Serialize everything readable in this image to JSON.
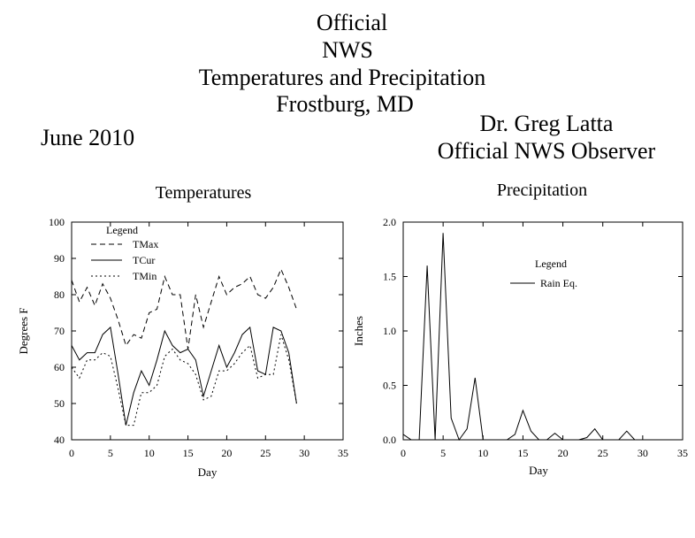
{
  "header": {
    "title_lines": [
      "Official",
      "NWS",
      "Temperatures and Precipitation",
      "Frostburg, MD"
    ],
    "month": "June 2010",
    "observer_lines": [
      "Dr. Greg Latta",
      "Official NWS Observer"
    ]
  },
  "chart_data": [
    {
      "type": "line",
      "title": "Temperatures",
      "xlabel": "Day",
      "ylabel": "Degrees F",
      "xlim": [
        0,
        35
      ],
      "ylim": [
        40,
        100
      ],
      "xticks": [
        0,
        5,
        10,
        15,
        20,
        25,
        30,
        35
      ],
      "yticks": [
        40,
        50,
        60,
        70,
        80,
        90,
        100
      ],
      "legend_title": "Legend",
      "legend_position": "top-left",
      "grid": false,
      "x": [
        0,
        1,
        2,
        3,
        4,
        5,
        6,
        7,
        8,
        9,
        10,
        11,
        12,
        13,
        14,
        15,
        16,
        17,
        18,
        19,
        20,
        21,
        22,
        23,
        24,
        25,
        26,
        27,
        28,
        29
      ],
      "series": [
        {
          "name": "TMax",
          "style": "dashed",
          "values": [
            84,
            78,
            82,
            77,
            83,
            79,
            73,
            66,
            69,
            68,
            75,
            76,
            85,
            80,
            80,
            65,
            80,
            71,
            78,
            85,
            80,
            82,
            83,
            85,
            80,
            79,
            82,
            87,
            82,
            76
          ]
        },
        {
          "name": "TCur",
          "style": "solid",
          "values": [
            66,
            62,
            64,
            64,
            69,
            71,
            58,
            44,
            53,
            59,
            55,
            62,
            70,
            66,
            64,
            65,
            62,
            52,
            59,
            66,
            60,
            64,
            69,
            71,
            59,
            58,
            71,
            70,
            64,
            50
          ]
        },
        {
          "name": "TMin",
          "style": "dotted",
          "values": [
            60,
            57,
            62,
            62,
            64,
            63,
            54,
            44,
            44,
            53,
            53,
            55,
            63,
            65,
            62,
            61,
            58,
            51,
            52,
            59,
            59,
            61,
            64,
            66,
            57,
            58,
            58,
            69,
            62,
            50
          ]
        }
      ]
    },
    {
      "type": "line",
      "title": "Precipitation",
      "xlabel": "Day",
      "ylabel": "Inches",
      "xlim": [
        0,
        35
      ],
      "ylim": [
        0,
        2
      ],
      "xticks": [
        0,
        5,
        10,
        15,
        20,
        25,
        30,
        35
      ],
      "yticks": [
        0,
        0.5,
        1,
        1.5,
        2
      ],
      "ytick_labels": [
        "0.0",
        "0.5",
        "1.0",
        "1.5",
        "2.0"
      ],
      "legend_title": "Legend",
      "legend_position": "center-right",
      "grid": false,
      "x": [
        0,
        1,
        2,
        3,
        4,
        5,
        6,
        7,
        8,
        9,
        10,
        11,
        12,
        13,
        14,
        15,
        16,
        17,
        18,
        19,
        20,
        21,
        22,
        23,
        24,
        25,
        26,
        27,
        28,
        29
      ],
      "series": [
        {
          "name": "Rain Eq.",
          "style": "solid",
          "values": [
            0.05,
            0,
            0,
            1.6,
            0,
            1.9,
            0.2,
            0,
            0.1,
            0.57,
            0,
            0,
            0,
            0,
            0.05,
            0.27,
            0.08,
            0,
            0,
            0.06,
            0,
            0,
            0,
            0.02,
            0.1,
            0,
            0,
            0,
            0.08,
            0
          ]
        }
      ]
    }
  ]
}
